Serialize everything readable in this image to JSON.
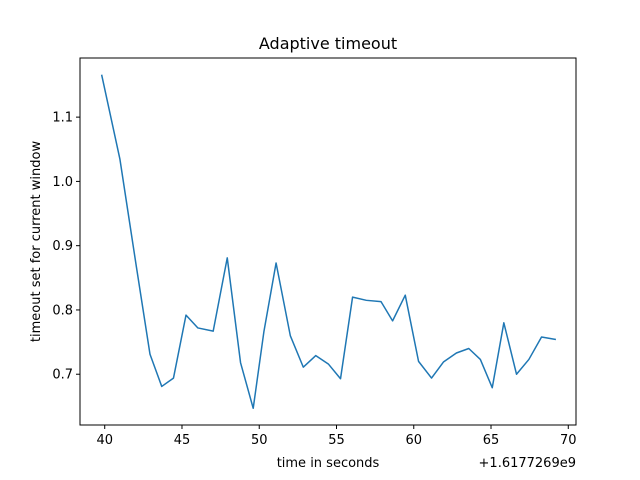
{
  "chart_data": {
    "type": "line",
    "title": "Adaptive timeout",
    "xlabel": "time in seconds",
    "ylabel": "timeout set for current window",
    "x_offset_label": "+1.6177269e9",
    "xlim": [
      38.4,
      70.5
    ],
    "ylim": [
      0.621,
      1.192
    ],
    "x_ticks": [
      40,
      45,
      50,
      55,
      60,
      65,
      70
    ],
    "x_tick_labels": [
      "40",
      "45",
      "50",
      "55",
      "60",
      "65",
      "70"
    ],
    "y_ticks": [
      0.7,
      0.8,
      0.9,
      1.0,
      1.1
    ],
    "y_tick_labels": [
      "0.7",
      "0.8",
      "0.9",
      "1.0",
      "1.1"
    ],
    "grid": false,
    "series": [
      {
        "name": "",
        "color": "#1f77b4",
        "x": [
          39.8,
          40.98,
          42.05,
          42.93,
          43.69,
          44.45,
          45.26,
          46.03,
          47.02,
          47.93,
          48.79,
          49.61,
          50.3,
          51.09,
          52.01,
          52.85,
          53.66,
          54.47,
          55.26,
          56.04,
          56.93,
          57.88,
          58.63,
          59.45,
          60.31,
          61.15,
          61.92,
          62.76,
          63.56,
          64.31,
          65.08,
          65.83,
          66.65,
          67.45,
          68.27,
          69.2
        ],
        "y": [
          1.166,
          1.035,
          0.867,
          0.731,
          0.681,
          0.694,
          0.792,
          0.772,
          0.767,
          0.881,
          0.718,
          0.647,
          0.766,
          0.873,
          0.76,
          0.711,
          0.729,
          0.716,
          0.693,
          0.82,
          0.815,
          0.813,
          0.783,
          0.823,
          0.72,
          0.694,
          0.719,
          0.733,
          0.74,
          0.723,
          0.679,
          0.78,
          0.7,
          0.723,
          0.758,
          0.754
        ]
      }
    ]
  }
}
